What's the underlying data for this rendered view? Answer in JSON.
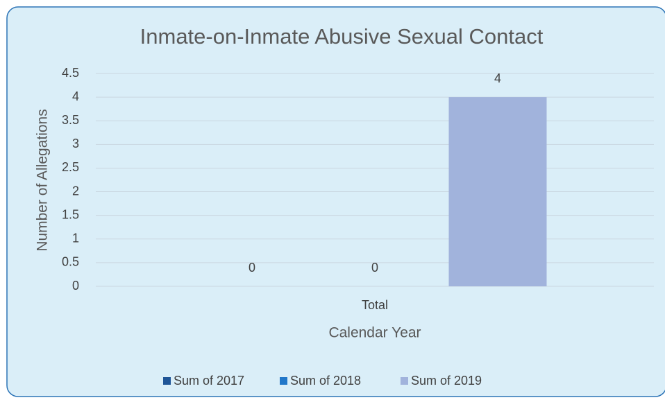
{
  "chart_data": {
    "type": "bar",
    "title": "Inmate-on-Inmate Abusive Sexual Contact",
    "categories": [
      "Total"
    ],
    "series": [
      {
        "name": "Sum of 2017",
        "color": "#1f5597",
        "values": [
          0
        ]
      },
      {
        "name": "Sum of 2018",
        "color": "#2177c9",
        "values": [
          0
        ]
      },
      {
        "name": "Sum of 2019",
        "color": "#a1b3dc",
        "values": [
          4
        ]
      }
    ],
    "x_label": "Calendar Year",
    "y_label": "Number of Allegations",
    "ylim": [
      0,
      4.5
    ],
    "yticks": [
      0,
      0.5,
      1,
      1.5,
      2,
      2.5,
      3,
      3.5,
      4,
      4.5
    ],
    "grid": true,
    "legend": "bottom"
  }
}
